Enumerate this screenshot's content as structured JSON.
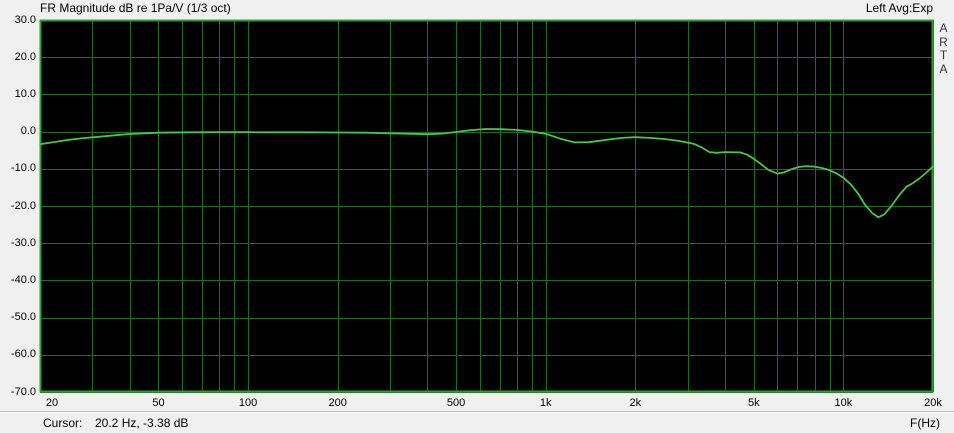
{
  "header": {
    "title": "FR Magnitude dB re 1Pa/V (1/3 oct)",
    "right_label": "Left Avg:Exp"
  },
  "branding": {
    "letters": [
      "A",
      "R",
      "T",
      "A"
    ]
  },
  "status": {
    "cursor_label": "Cursor:",
    "cursor_value": "20.2 Hz, -3.38 dB",
    "x_unit": "F(Hz)"
  },
  "colors": {
    "background": "#f0f0f0",
    "plot_bg": "#000000",
    "grid": "#1c6e1c",
    "frame": "#2f9e2f",
    "curve": "#46c846",
    "text": "#000000"
  },
  "chart_data": {
    "type": "line",
    "title": "FR Magnitude dB re 1Pa/V (1/3 oct)",
    "xlabel": "F(Hz)",
    "ylabel": "dB re 1Pa/V",
    "x_scale": "log",
    "xlim": [
      20,
      20000
    ],
    "ylim": [
      -70,
      30
    ],
    "grid": true,
    "y_ticks": [
      30,
      20,
      10,
      0,
      -10,
      -20,
      -30,
      -40,
      -50,
      -60,
      -70
    ],
    "x_gridlines": [
      20,
      30,
      40,
      50,
      60,
      70,
      80,
      90,
      100,
      200,
      300,
      400,
      500,
      600,
      700,
      800,
      900,
      1000,
      2000,
      3000,
      4000,
      5000,
      6000,
      7000,
      8000,
      9000,
      10000,
      20000
    ],
    "x_ticks": [
      {
        "f": 20,
        "label": "20"
      },
      {
        "f": 50,
        "label": "50"
      },
      {
        "f": 100,
        "label": "100"
      },
      {
        "f": 200,
        "label": "200"
      },
      {
        "f": 500,
        "label": "500"
      },
      {
        "f": 1000,
        "label": "1k"
      },
      {
        "f": 2000,
        "label": "2k"
      },
      {
        "f": 5000,
        "label": "5k"
      },
      {
        "f": 10000,
        "label": "10k"
      },
      {
        "f": 20000,
        "label": "20k"
      }
    ],
    "series": [
      {
        "name": "Left",
        "color": "#46c846",
        "points": [
          [
            20,
            -3.4
          ],
          [
            22.4,
            -2.8
          ],
          [
            25,
            -2.2
          ],
          [
            28,
            -1.75
          ],
          [
            31.5,
            -1.4
          ],
          [
            35.5,
            -1.0
          ],
          [
            40,
            -0.65
          ],
          [
            45,
            -0.45
          ],
          [
            50,
            -0.3
          ],
          [
            63,
            -0.2
          ],
          [
            80,
            -0.15
          ],
          [
            100,
            -0.15
          ],
          [
            125,
            -0.2
          ],
          [
            160,
            -0.2
          ],
          [
            200,
            -0.25
          ],
          [
            250,
            -0.3
          ],
          [
            315,
            -0.5
          ],
          [
            355,
            -0.6
          ],
          [
            400,
            -0.7
          ],
          [
            450,
            -0.55
          ],
          [
            500,
            -0.1
          ],
          [
            560,
            0.4
          ],
          [
            630,
            0.7
          ],
          [
            710,
            0.65
          ],
          [
            800,
            0.45
          ],
          [
            900,
            0.0
          ],
          [
            1000,
            -0.6
          ],
          [
            1120,
            -1.9
          ],
          [
            1250,
            -2.9
          ],
          [
            1400,
            -2.85
          ],
          [
            1600,
            -2.2
          ],
          [
            1800,
            -1.7
          ],
          [
            2000,
            -1.5
          ],
          [
            2240,
            -1.7
          ],
          [
            2500,
            -2.0
          ],
          [
            2800,
            -2.5
          ],
          [
            3150,
            -3.3
          ],
          [
            3350,
            -4.3
          ],
          [
            3550,
            -5.5
          ],
          [
            3750,
            -5.7
          ],
          [
            4000,
            -5.5
          ],
          [
            4500,
            -5.6
          ],
          [
            4750,
            -6.2
          ],
          [
            5000,
            -7.3
          ],
          [
            5300,
            -8.8
          ],
          [
            5600,
            -10.3
          ],
          [
            6000,
            -11.3
          ],
          [
            6300,
            -11.0
          ],
          [
            6700,
            -10.1
          ],
          [
            7100,
            -9.5
          ],
          [
            7500,
            -9.3
          ],
          [
            8000,
            -9.4
          ],
          [
            8500,
            -9.8
          ],
          [
            9000,
            -10.4
          ],
          [
            9500,
            -11.3
          ],
          [
            10000,
            -12.4
          ],
          [
            10600,
            -14.2
          ],
          [
            11200,
            -16.6
          ],
          [
            11800,
            -19.6
          ],
          [
            12500,
            -21.9
          ],
          [
            13100,
            -23.0
          ],
          [
            13700,
            -22.3
          ],
          [
            14500,
            -20.0
          ],
          [
            15500,
            -16.8
          ],
          [
            16300,
            -14.8
          ],
          [
            17000,
            -14.0
          ],
          [
            18000,
            -12.6
          ],
          [
            19000,
            -11.0
          ],
          [
            20000,
            -9.4
          ]
        ]
      }
    ]
  }
}
